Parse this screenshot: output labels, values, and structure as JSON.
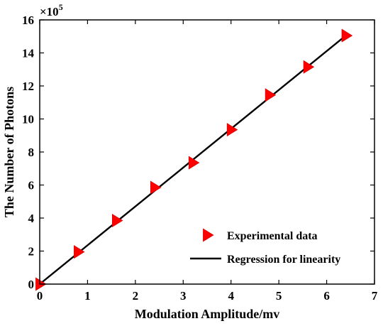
{
  "chart_data": {
    "type": "scatter",
    "xlabel": "Modulation Amplitude/mv",
    "ylabel": "The Number of Photons",
    "y_multiplier": {
      "base": "×10",
      "exponent": "5"
    },
    "xlim": [
      0,
      7
    ],
    "ylim": [
      0,
      16
    ],
    "xticks": [
      "0",
      "1",
      "2",
      "3",
      "4",
      "5",
      "6",
      "7"
    ],
    "yticks": [
      "0",
      "2",
      "4",
      "6",
      "8",
      "10",
      "12",
      "14",
      "16"
    ],
    "grid": false,
    "legend_position": "bottom-right",
    "series": [
      {
        "name": "Experimental data",
        "kind": "marker",
        "marker": "triangle-right",
        "color": "#ff0000",
        "x": [
          0,
          0.8,
          1.6,
          2.4,
          3.2,
          4.0,
          4.8,
          5.6,
          6.4
        ],
        "y": [
          0,
          1.95,
          3.85,
          5.85,
          7.35,
          9.35,
          11.45,
          13.15,
          15.05
        ]
      },
      {
        "name": "Regression for linearity",
        "kind": "line",
        "color": "#000000",
        "x": [
          0,
          6.4
        ],
        "y": [
          0,
          15.05
        ]
      }
    ]
  }
}
